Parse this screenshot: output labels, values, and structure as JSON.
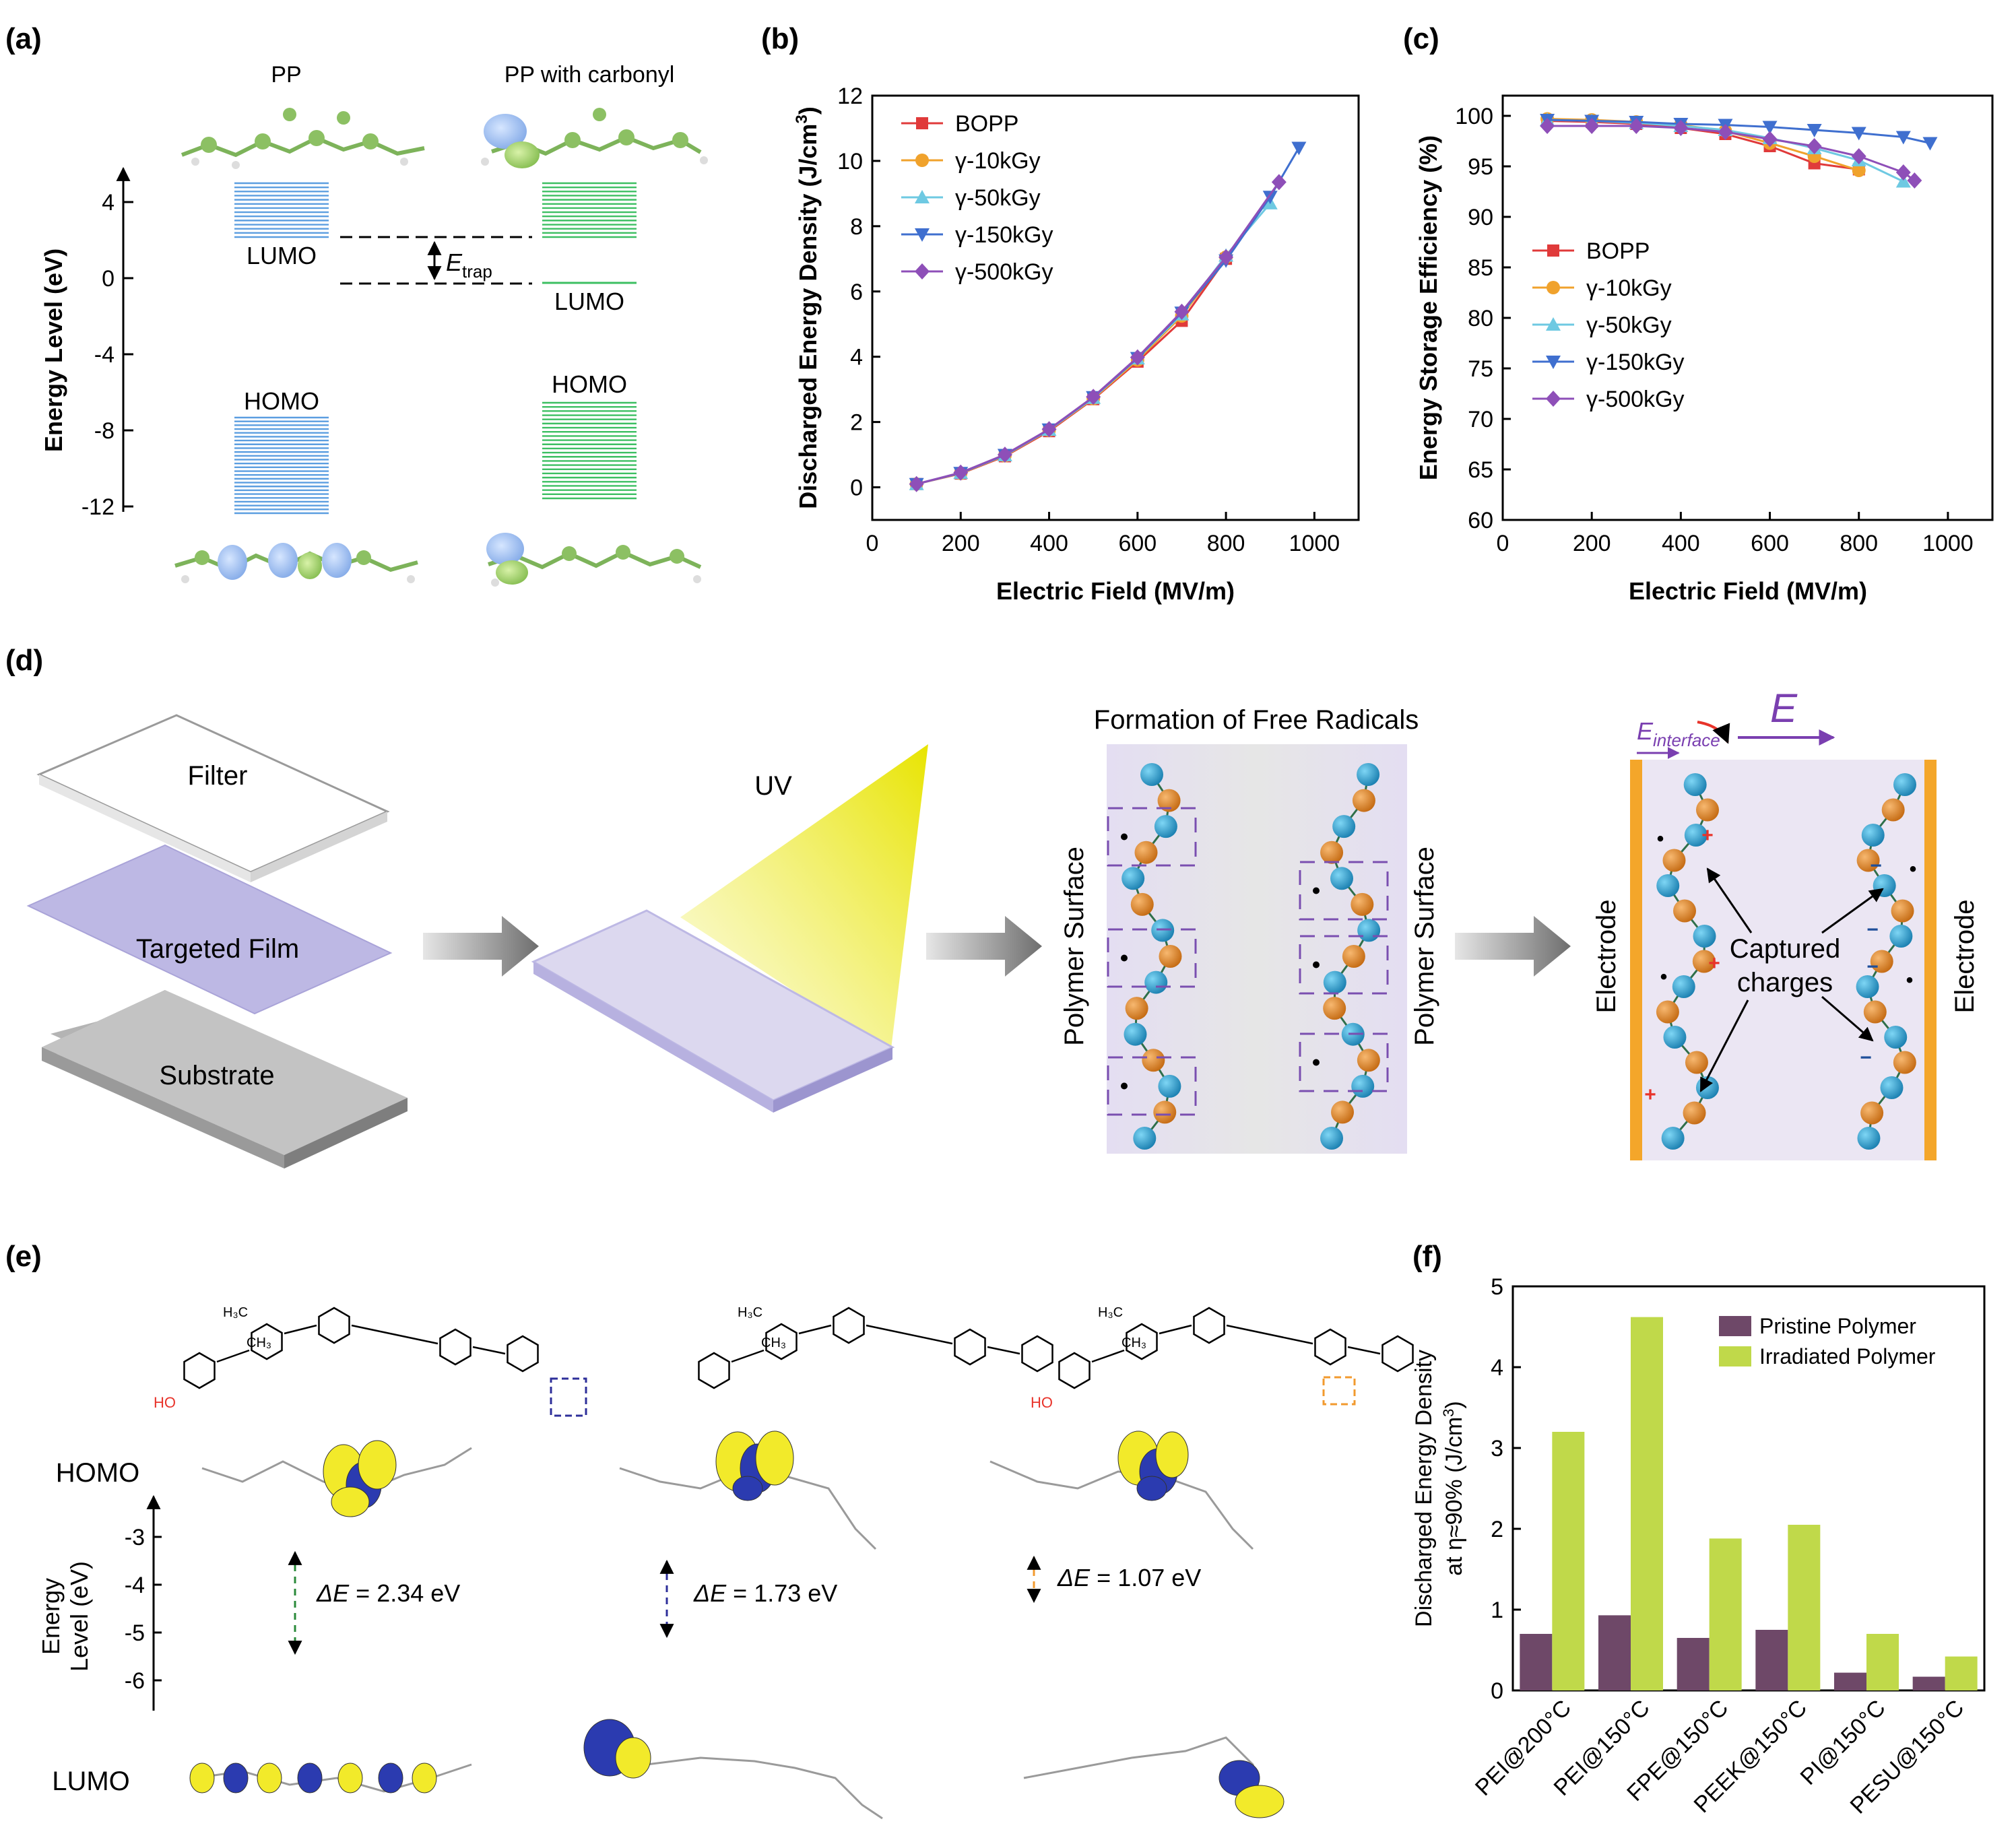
{
  "panel_labels": {
    "a": "(a)",
    "b": "(b)",
    "c": "(c)",
    "d": "(d)",
    "e": "(e)",
    "f": "(f)"
  },
  "panel_a": {
    "title_left": "PP",
    "title_right": "PP with carbonyl",
    "ylabel": "Energy Level (eV)",
    "ticks": [
      "4",
      "0",
      "-4",
      "-8",
      "-12"
    ],
    "lumo": "LUMO",
    "homo": "HOMO",
    "etrap_main": "E",
    "etrap_sub": "trap",
    "colors": {
      "pp": "#5b9ee0",
      "carbonyl": "#3cbf62"
    }
  },
  "chart_data": [
    {
      "id": "b",
      "type": "line",
      "title": "",
      "xlabel": "Electric Field (MV/m)",
      "ylabel_main": "Discharged Energy Density (J/cm",
      "ylabel_sup": "3",
      "ylabel_end": ")",
      "xlim": [
        0,
        1100
      ],
      "ylim": [
        -1,
        12
      ],
      "xticks": [
        "0",
        "200",
        "400",
        "600",
        "800",
        "1000"
      ],
      "yticks": [
        "0",
        "2",
        "4",
        "6",
        "8",
        "10",
        "12"
      ],
      "legend_position": "top-left",
      "series": [
        {
          "name": "BOPP",
          "color": "#e03a3a",
          "marker": "square",
          "x": [
            100,
            200,
            300,
            400,
            500,
            600,
            700,
            800
          ],
          "y": [
            0.1,
            0.42,
            0.95,
            1.72,
            2.7,
            3.85,
            5.1,
            7.0
          ]
        },
        {
          "name": "γ-10kGy",
          "color": "#f0a22c",
          "marker": "circle",
          "x": [
            100,
            200,
            300,
            400,
            500,
            600,
            700,
            800
          ],
          "y": [
            0.1,
            0.43,
            0.97,
            1.75,
            2.72,
            3.9,
            5.25,
            7.05
          ]
        },
        {
          "name": "γ-50kGy",
          "color": "#6ec9e2",
          "marker": "triangle-up",
          "x": [
            100,
            200,
            300,
            400,
            500,
            600,
            700,
            800,
            900
          ],
          "y": [
            0.1,
            0.44,
            0.98,
            1.76,
            2.74,
            3.95,
            5.3,
            7.1,
            8.7
          ]
        },
        {
          "name": "γ-150kGy",
          "color": "#3f6fcf",
          "marker": "triangle-down",
          "x": [
            100,
            200,
            300,
            400,
            500,
            600,
            700,
            800,
            900,
            965
          ],
          "y": [
            0.1,
            0.44,
            0.99,
            1.77,
            2.76,
            3.96,
            5.35,
            6.95,
            8.9,
            10.4
          ]
        },
        {
          "name": "γ-500kGy",
          "color": "#8e4fb8",
          "marker": "diamond",
          "x": [
            100,
            200,
            300,
            400,
            500,
            600,
            700,
            800,
            920
          ],
          "y": [
            0.1,
            0.45,
            1.0,
            1.78,
            2.77,
            3.98,
            5.38,
            7.05,
            9.35
          ]
        }
      ]
    },
    {
      "id": "c",
      "type": "line",
      "title": "",
      "xlabel": "Electric Field (MV/m)",
      "ylabel": "Energy Storage Efficiency (%)",
      "xlim": [
        0,
        1100
      ],
      "ylim": [
        60,
        102
      ],
      "xticks": [
        "0",
        "200",
        "400",
        "600",
        "800",
        "1000"
      ],
      "yticks": [
        "60",
        "65",
        "70",
        "75",
        "80",
        "85",
        "90",
        "95",
        "100"
      ],
      "legend_position": "center-left",
      "series": [
        {
          "name": "BOPP",
          "color": "#e03a3a",
          "marker": "square",
          "x": [
            100,
            200,
            300,
            400,
            500,
            600,
            700,
            800
          ],
          "y": [
            99.5,
            99.4,
            99.2,
            98.8,
            98.2,
            97.0,
            95.3,
            94.7
          ]
        },
        {
          "name": "γ-10kGy",
          "color": "#f0a22c",
          "marker": "circle",
          "x": [
            100,
            200,
            300,
            400,
            500,
            600,
            700,
            800
          ],
          "y": [
            99.7,
            99.6,
            99.4,
            99.1,
            98.5,
            97.3,
            96.0,
            94.6
          ]
        },
        {
          "name": "γ-50kGy",
          "color": "#6ec9e2",
          "marker": "triangle-up",
          "x": [
            100,
            200,
            300,
            400,
            500,
            600,
            700,
            800,
            900
          ],
          "y": [
            99.6,
            99.5,
            99.3,
            99.0,
            98.6,
            97.8,
            96.8,
            95.6,
            93.5
          ]
        },
        {
          "name": "γ-150kGy",
          "color": "#3f6fcf",
          "marker": "triangle-down",
          "x": [
            100,
            200,
            300,
            400,
            500,
            600,
            700,
            800,
            900,
            960
          ],
          "y": [
            99.6,
            99.5,
            99.4,
            99.2,
            99.1,
            98.9,
            98.6,
            98.3,
            97.9,
            97.3
          ]
        },
        {
          "name": "γ-500kGy",
          "color": "#8e4fb8",
          "marker": "diamond",
          "x": [
            100,
            200,
            300,
            400,
            500,
            600,
            700,
            800,
            900,
            925
          ],
          "y": [
            99.0,
            99.0,
            99.0,
            98.8,
            98.4,
            97.7,
            97.0,
            96.0,
            94.4,
            93.6
          ]
        }
      ]
    },
    {
      "id": "f",
      "type": "bar",
      "title": "",
      "xlabel": "",
      "ylabel_line1": "Discharged Energy Density",
      "ylabel_line2_main": "at η≈90% (J/cm",
      "ylabel_line2_sup": "3",
      "ylabel_line2_end": ")",
      "ylim": [
        0,
        5
      ],
      "yticks": [
        "0",
        "1",
        "2",
        "3",
        "4",
        "5"
      ],
      "categories": [
        "PEI@200°C",
        "PEI@150°C",
        "FPE@150°C",
        "PEEK@150°C",
        "PI@150°C",
        "PESU@150°C"
      ],
      "legend_position": "top-right",
      "series": [
        {
          "name": "Pristine Polymer",
          "color": "#6e4868",
          "values": [
            0.7,
            0.93,
            0.65,
            0.75,
            0.22,
            0.17
          ]
        },
        {
          "name": "Irradiated Polymer",
          "color": "#c0d94a",
          "values": [
            3.2,
            4.62,
            1.88,
            2.05,
            0.7,
            0.42
          ]
        }
      ]
    }
  ],
  "panel_d": {
    "filter": "Filter",
    "targeted_film": "Targeted Film",
    "substrate": "Substrate",
    "uv": "UV",
    "free_radicals_title": "Formation of Free Radicals",
    "polymer_surface": "Polymer Surface",
    "electrode": "Electrode",
    "captured_line1": "Captured",
    "captured_line2": "charges",
    "e_interface_main": "E",
    "e_interface_sub": "interface",
    "e_field": "E"
  },
  "panel_e": {
    "homo": "HOMO",
    "lumo": "LUMO",
    "ylabel_line1": "Energy",
    "ylabel_line2": "Level (eV)",
    "ticks": [
      "-3",
      "-4",
      "-5",
      "-6"
    ],
    "gaps": [
      {
        "prefix": "ΔE",
        "value": " = 2.34 eV",
        "color": "#2a8a3a"
      },
      {
        "prefix": "ΔE",
        "value": " = 1.73 eV",
        "color": "#2e2f9a"
      },
      {
        "prefix": "ΔE",
        "value": " = 1.07 eV",
        "color": "#f29a2e"
      }
    ],
    "ho": "HO",
    "methyl_a": "H₃C",
    "methyl_b": "CH₃"
  }
}
